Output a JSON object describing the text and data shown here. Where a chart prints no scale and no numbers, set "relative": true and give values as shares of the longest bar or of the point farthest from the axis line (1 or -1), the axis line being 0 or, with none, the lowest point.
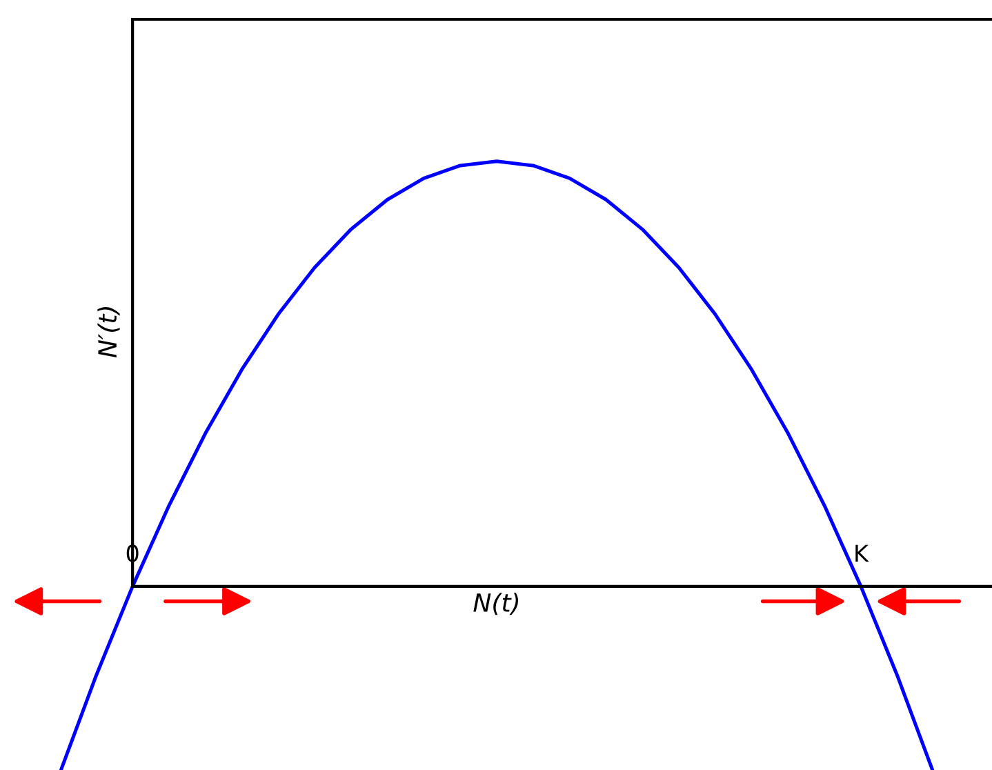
{
  "chart_data": {
    "type": "line",
    "relative": true,
    "xlabel": "N(t)",
    "ylabel": "N′(t)",
    "categories": [
      null,
      null,
      "0",
      null,
      null,
      null,
      null,
      null,
      null,
      null,
      null,
      null,
      null,
      null,
      null,
      null,
      null,
      null,
      null,
      null,
      null,
      null,
      "K",
      null,
      null
    ],
    "series": [
      {
        "color": "#0000ff",
        "values": [
          -0.44,
          -0.21,
          0,
          0.19,
          0.36,
          0.51,
          0.64,
          0.75,
          0.84,
          0.91,
          0.96,
          0.99,
          1,
          0.99,
          0.96,
          0.91,
          0.84,
          0.75,
          0.64,
          0.51,
          0.36,
          0.19,
          0,
          -0.21,
          -0.44
        ]
      }
    ],
    "marker": "none",
    "line_style": "solid",
    "legend": false
  }
}
